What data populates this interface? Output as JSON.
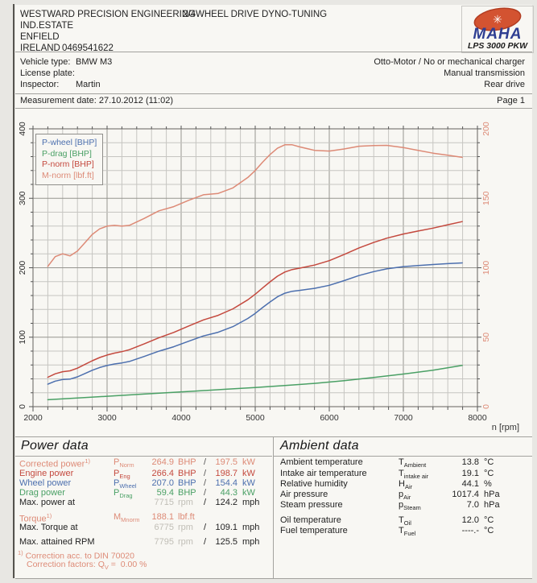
{
  "header": {
    "company": "WESTWARD PRECISION ENGINEERING",
    "title": "2/4WHEEL DRIVE DYNO-TUNING",
    "address1": "IND.ESTATE",
    "address2": "ENFIELD",
    "address3": "IRELAND",
    "phone": "0469541622"
  },
  "logo": {
    "brand": "MAHA",
    "model": "LPS 3000 PKW",
    "gear_icon": "✳"
  },
  "vehicle": {
    "rows": [
      {
        "label": "Vehicle type:",
        "value": "BMW M3"
      },
      {
        "label": "License plate:",
        "value": ""
      },
      {
        "label": "Inspector:",
        "value": "Martin"
      }
    ],
    "right": [
      "Otto-Motor / No or mechanical charger",
      "Manual transmission",
      "Rear drive"
    ]
  },
  "meta": {
    "measurement": "Measurement date: 27.10.2012 (11:02)",
    "page": "Page 1"
  },
  "chart_data": {
    "type": "line",
    "xlabel": "n [rpm]",
    "x_range": [
      2000,
      8000
    ],
    "x_major": 1000,
    "x_minor": 200,
    "y_left": {
      "range": [
        0,
        400
      ],
      "major": 100,
      "minor": 20
    },
    "y_right": {
      "range": [
        0,
        200
      ],
      "major": 50
    },
    "grid": true,
    "legend_position": "top-left",
    "legend": [
      "P-wheel [BHP]",
      "P-drag [BHP]",
      "P-norm [BHP]",
      "M-norm [lbf.ft]"
    ],
    "series": [
      {
        "name": "P-wheel [BHP]",
        "axis": "left",
        "color": "#4c6fae",
        "points": [
          [
            2200,
            32.3
          ],
          [
            2300,
            36.7
          ],
          [
            2400,
            39.1
          ],
          [
            2500,
            39.7
          ],
          [
            2600,
            42.9
          ],
          [
            2700,
            47.6
          ],
          [
            2800,
            52.4
          ],
          [
            2900,
            56.3
          ],
          [
            3000,
            59.3
          ],
          [
            3100,
            61.5
          ],
          [
            3200,
            62.9
          ],
          [
            3300,
            65.1
          ],
          [
            3500,
            72.2
          ],
          [
            3700,
            79.9
          ],
          [
            3900,
            86.3
          ],
          [
            4100,
            94.1
          ],
          [
            4300,
            101.8
          ],
          [
            4500,
            107.1
          ],
          [
            4700,
            115.3
          ],
          [
            4900,
            127.0
          ],
          [
            5000,
            134.3
          ],
          [
            5100,
            142.7
          ],
          [
            5200,
            150.7
          ],
          [
            5300,
            158.1
          ],
          [
            5400,
            163.4
          ],
          [
            5500,
            166.2
          ],
          [
            5600,
            167.4
          ],
          [
            5800,
            170.3
          ],
          [
            6000,
            174.7
          ],
          [
            6200,
            181.5
          ],
          [
            6400,
            188.8
          ],
          [
            6600,
            194.4
          ],
          [
            6775,
            198.4
          ],
          [
            7000,
            201.6
          ],
          [
            7200,
            203.2
          ],
          [
            7400,
            204.6
          ],
          [
            7600,
            205.9
          ],
          [
            7795,
            207.0
          ]
        ]
      },
      {
        "name": "P-drag [BHP]",
        "axis": "left",
        "color": "#4aa065",
        "points": [
          [
            2200,
            10
          ],
          [
            2600,
            12.5
          ],
          [
            3000,
            15
          ],
          [
            3400,
            17.5
          ],
          [
            3800,
            20
          ],
          [
            4200,
            22.5
          ],
          [
            4600,
            25
          ],
          [
            5000,
            27.5
          ],
          [
            5400,
            30.5
          ],
          [
            5800,
            33.5
          ],
          [
            6200,
            37.5
          ],
          [
            6600,
            42
          ],
          [
            7000,
            47
          ],
          [
            7400,
            52.5
          ],
          [
            7795,
            59.4
          ]
        ]
      },
      {
        "name": "P-norm [BHP]",
        "axis": "left",
        "color": "#c4493e",
        "points": [
          [
            2200,
            42.3
          ],
          [
            2300,
            47.3
          ],
          [
            2400,
            50.3
          ],
          [
            2500,
            51.6
          ],
          [
            2600,
            55.4
          ],
          [
            2700,
            60.7
          ],
          [
            2800,
            66.1
          ],
          [
            2900,
            70.7
          ],
          [
            3000,
            74.3
          ],
          [
            3100,
            77.1
          ],
          [
            3200,
            79.2
          ],
          [
            3300,
            82.0
          ],
          [
            3500,
            90.3
          ],
          [
            3700,
            99.3
          ],
          [
            3900,
            106.9
          ],
          [
            4100,
            116.0
          ],
          [
            4300,
            124.9
          ],
          [
            4500,
            131.5
          ],
          [
            4700,
            140.9
          ],
          [
            4900,
            153.9
          ],
          [
            5000,
            161.8
          ],
          [
            5100,
            170.9
          ],
          [
            5200,
            179.7
          ],
          [
            5300,
            187.8
          ],
          [
            5400,
            193.9
          ],
          [
            5500,
            197.4
          ],
          [
            5600,
            199.4
          ],
          [
            5800,
            203.8
          ],
          [
            6000,
            210.2
          ],
          [
            6200,
            219.0
          ],
          [
            6400,
            228.5
          ],
          [
            6600,
            236.4
          ],
          [
            6775,
            242.6
          ],
          [
            7000,
            248.6
          ],
          [
            7200,
            252.9
          ],
          [
            7400,
            257.1
          ],
          [
            7600,
            261.9
          ],
          [
            7795,
            266.4
          ]
        ]
      },
      {
        "name": "M-norm [lbf.ft]",
        "axis": "right",
        "color": "#dd8a76",
        "points": [
          [
            2200,
            101
          ],
          [
            2300,
            108
          ],
          [
            2400,
            110
          ],
          [
            2500,
            108.5
          ],
          [
            2600,
            112
          ],
          [
            2700,
            118
          ],
          [
            2800,
            124
          ],
          [
            2900,
            128
          ],
          [
            3000,
            130
          ],
          [
            3100,
            130.5
          ],
          [
            3200,
            130
          ],
          [
            3300,
            130.5
          ],
          [
            3500,
            135.5
          ],
          [
            3700,
            141
          ],
          [
            3900,
            144
          ],
          [
            4100,
            148.5
          ],
          [
            4300,
            152.5
          ],
          [
            4500,
            153.5
          ],
          [
            4700,
            157.5
          ],
          [
            4900,
            165
          ],
          [
            5000,
            170
          ],
          [
            5100,
            176
          ],
          [
            5200,
            181.5
          ],
          [
            5300,
            186
          ],
          [
            5400,
            188.5
          ],
          [
            5500,
            188.5
          ],
          [
            5600,
            187
          ],
          [
            5800,
            184.5
          ],
          [
            6000,
            184
          ],
          [
            6200,
            185.5
          ],
          [
            6400,
            187.5
          ],
          [
            6600,
            188
          ],
          [
            6775,
            188.1
          ],
          [
            7000,
            186.5
          ],
          [
            7200,
            184.5
          ],
          [
            7400,
            182.5
          ],
          [
            7600,
            181
          ],
          [
            7795,
            179.5
          ]
        ]
      }
    ]
  },
  "power": {
    "heading": "Power data",
    "rows": [
      {
        "label": "Corrected power",
        "sup": "1)",
        "sym": "P",
        "sub": "Norm",
        "c": "salmon",
        "v1": "264.9",
        "u1": "BHP",
        "v2": "197.5",
        "u2": "kW"
      },
      {
        "label": "Engine power",
        "sym": "P",
        "sub": "Eng",
        "c": "red",
        "v1": "266.4",
        "u1": "BHP",
        "v2": "198.7",
        "u2": "kW"
      },
      {
        "label": "Wheel power",
        "sym": "P",
        "sub": "Wheel",
        "c": "blue",
        "v1": "207.0",
        "u1": "BHP",
        "v2": "154.4",
        "u2": "kW"
      },
      {
        "label": "Drag power",
        "sym": "P",
        "sub": "Drag",
        "c": "green",
        "v1": "59.4",
        "u1": "BHP",
        "v2": "44.3",
        "u2": "kW"
      },
      {
        "label": "Max. power at",
        "c": "black",
        "v1": "7715",
        "u1": "rpm",
        "v2": "124.2",
        "u2": "mph"
      },
      {
        "label": "Torque",
        "sup": "1)",
        "sym": "M",
        "sub": "Mnorm",
        "c": "salmon",
        "v1": "188.1",
        "u1": "lbf.ft",
        "noslash": true
      },
      {
        "label": "Max. Torque at",
        "c": "black",
        "v1": "6775",
        "u1": "rpm",
        "v2": "109.1",
        "u2": "mph"
      },
      {
        "label": "Max. attained RPM",
        "c": "black",
        "v1": "7795",
        "u1": "rpm",
        "v2": "125.5",
        "u2": "mph"
      }
    ],
    "footnote_sup": "1)",
    "footnote1": " Correction acc. to DIN 70020",
    "footnote2_pre": "Correction factors: Q",
    "footnote2_sub": "V",
    "footnote2_post": " =  0.00 %"
  },
  "ambient": {
    "heading": "Ambient data",
    "rows": [
      {
        "label": "Ambient temperature",
        "sym": "T",
        "sub": "Ambient",
        "value": "13.8",
        "unit": "°C"
      },
      {
        "label": "Intake air temperature",
        "sym": "T",
        "sub": "intake air",
        "value": "19.1",
        "unit": "°C"
      },
      {
        "label": "Relative humidity",
        "sym": "H",
        "sub": "Air",
        "value": "44.1",
        "unit": "%"
      },
      {
        "label": "Air pressure",
        "sym": "p",
        "sub": "Air",
        "value": "1017.4",
        "unit": "hPa"
      },
      {
        "label": "Steam pressure",
        "sym": "p",
        "sub": "Steam",
        "value": "7.0",
        "unit": "hPa"
      },
      {
        "label": "Oil temperature",
        "sym": "T",
        "sub": "Oil",
        "value": "12.0",
        "unit": "°C"
      },
      {
        "label": "Fuel temperature",
        "sym": "T",
        "sub": "Fuel",
        "value": "----.-",
        "unit": "°C"
      }
    ]
  },
  "colors": {
    "red": "#c4493e",
    "salmon": "#dd8a76",
    "blue": "#4c6fae",
    "green": "#4aa065",
    "muted": "#c0beb6",
    "text": "#222222",
    "grid_minor": "#c6c5c1",
    "grid_major": "#96958f",
    "axis": "#7c7b77",
    "logo_red": "#d35331",
    "logo_blue": "#2e3e92"
  }
}
